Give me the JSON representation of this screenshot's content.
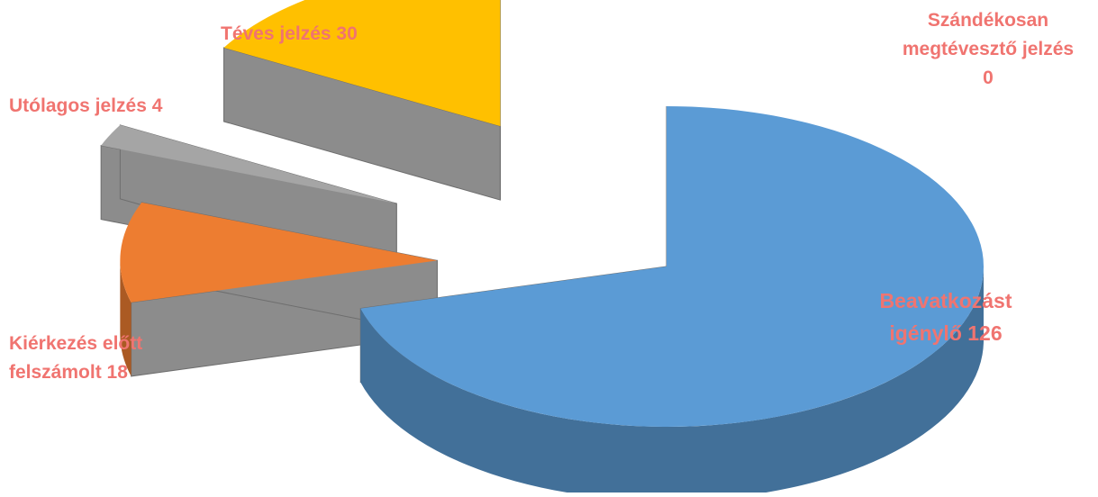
{
  "chart_data": {
    "type": "pie",
    "style": "3d-exploded",
    "slices": [
      {
        "label": "Beavatkozást igénylő",
        "value": 126,
        "color": "#5b9bd5",
        "label_lines": [
          "Beavatkozást",
          "igénylő 126"
        ]
      },
      {
        "label": "Kiérkezés előtt felszámolt",
        "value": 18,
        "color": "#ed7d31",
        "label_lines": [
          "Kiérkezés előtt",
          "felszámolt  18"
        ]
      },
      {
        "label": "Utólagos jelzés",
        "value": 4,
        "color": "#a5a5a5",
        "label_lines": [
          "Utólagos jelzés 4"
        ]
      },
      {
        "label": "Téves jelzés",
        "value": 30,
        "color": "#ffc000",
        "label_lines": [
          "Téves jelzés 30"
        ]
      },
      {
        "label": "Szándékosan megtévesztő jelzés",
        "value": 0,
        "color": "#4472c4",
        "label_lines": [
          "Szándékosan",
          "megtévesztő jelzés",
          "0"
        ]
      }
    ],
    "label_color": "#f07470",
    "side_color": "#8c8c8c",
    "legend": "none"
  }
}
